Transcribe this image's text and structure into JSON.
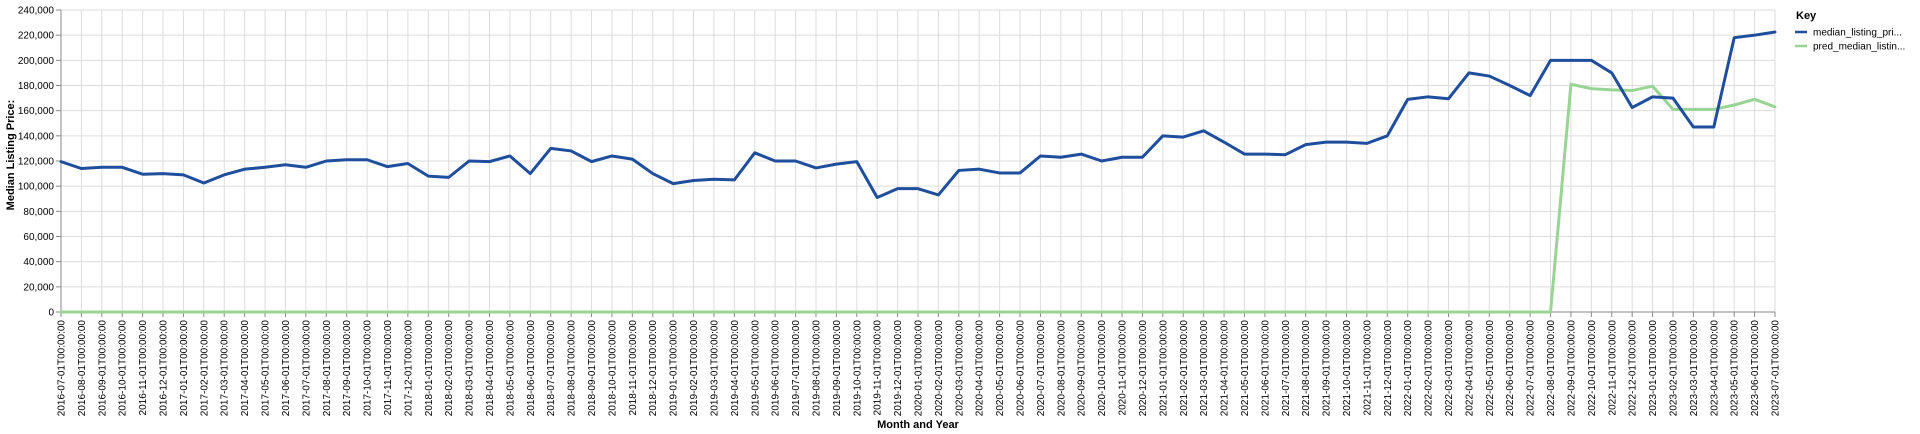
{
  "chart_data": {
    "type": "line",
    "xlabel": "Month and Year",
    "ylabel": "Median Listing Price:",
    "ylim": [
      0,
      240000
    ],
    "y_ticks": [
      0,
      20000,
      40000,
      60000,
      80000,
      100000,
      120000,
      140000,
      160000,
      180000,
      200000,
      220000,
      240000
    ],
    "y_tick_labels": [
      "0",
      "20,000",
      "40,000",
      "60,000",
      "80,000",
      "100,000",
      "120,000",
      "140,000",
      "160,000",
      "180,000",
      "200,000",
      "220,000",
      "240,000"
    ],
    "grid": true,
    "legend_title": "Key",
    "legend_position": "top-right",
    "x": [
      "2016-07-01T00:00:00",
      "2016-08-01T00:00:00",
      "2016-09-01T00:00:00",
      "2016-10-01T00:00:00",
      "2016-11-01T00:00:00",
      "2016-12-01T00:00:00",
      "2017-01-01T00:00:00",
      "2017-02-01T00:00:00",
      "2017-03-01T00:00:00",
      "2017-04-01T00:00:00",
      "2017-05-01T00:00:00",
      "2017-06-01T00:00:00",
      "2017-07-01T00:00:00",
      "2017-08-01T00:00:00",
      "2017-09-01T00:00:00",
      "2017-10-01T00:00:00",
      "2017-11-01T00:00:00",
      "2017-12-01T00:00:00",
      "2018-01-01T00:00:00",
      "2018-02-01T00:00:00",
      "2018-03-01T00:00:00",
      "2018-04-01T00:00:00",
      "2018-05-01T00:00:00",
      "2018-06-01T00:00:00",
      "2018-07-01T00:00:00",
      "2018-08-01T00:00:00",
      "2018-09-01T00:00:00",
      "2018-10-01T00:00:00",
      "2018-11-01T00:00:00",
      "2018-12-01T00:00:00",
      "2019-01-01T00:00:00",
      "2019-02-01T00:00:00",
      "2019-03-01T00:00:00",
      "2019-04-01T00:00:00",
      "2019-05-01T00:00:00",
      "2019-06-01T00:00:00",
      "2019-07-01T00:00:00",
      "2019-08-01T00:00:00",
      "2019-09-01T00:00:00",
      "2019-10-01T00:00:00",
      "2019-11-01T00:00:00",
      "2019-12-01T00:00:00",
      "2020-01-01T00:00:00",
      "2020-02-01T00:00:00",
      "2020-03-01T00:00:00",
      "2020-04-01T00:00:00",
      "2020-05-01T00:00:00",
      "2020-06-01T00:00:00",
      "2020-07-01T00:00:00",
      "2020-08-01T00:00:00",
      "2020-09-01T00:00:00",
      "2020-10-01T00:00:00",
      "2020-11-01T00:00:00",
      "2020-12-01T00:00:00",
      "2021-01-01T00:00:00",
      "2021-02-01T00:00:00",
      "2021-03-01T00:00:00",
      "2021-04-01T00:00:00",
      "2021-05-01T00:00:00",
      "2021-06-01T00:00:00",
      "2021-07-01T00:00:00",
      "2021-08-01T00:00:00",
      "2021-09-01T00:00:00",
      "2021-10-01T00:00:00",
      "2021-11-01T00:00:00",
      "2021-12-01T00:00:00",
      "2022-01-01T00:00:00",
      "2022-02-01T00:00:00",
      "2022-03-01T00:00:00",
      "2022-04-01T00:00:00",
      "2022-05-01T00:00:00",
      "2022-06-01T00:00:00",
      "2022-07-01T00:00:00",
      "2022-08-01T00:00:00",
      "2022-09-01T00:00:00",
      "2022-10-01T00:00:00",
      "2022-11-01T00:00:00",
      "2022-12-01T00:00:00",
      "2023-01-01T00:00:00",
      "2023-02-01T00:00:00",
      "2023-03-01T00:00:00",
      "2023-04-01T00:00:00",
      "2023-05-01T00:00:00",
      "2023-06-01T00:00:00",
      "2023-07-01T00:00:00"
    ],
    "series": [
      {
        "name": "median_listing_pri...",
        "color": "#1f4e9c",
        "values": [
          119500,
          114000,
          115000,
          115000,
          109500,
          110000,
          109000,
          102500,
          109000,
          113500,
          115000,
          117000,
          115000,
          120000,
          121000,
          121000,
          115500,
          118000,
          108000,
          107000,
          120000,
          119500,
          124000,
          110000,
          130000,
          128000,
          119500,
          124000,
          121500,
          110000,
          102000,
          104500,
          105500,
          105000,
          126500,
          120000,
          120000,
          114500,
          117500,
          119500,
          91000,
          98000,
          98000,
          93000,
          112500,
          113500,
          110500,
          110500,
          124000,
          123000,
          125500,
          120000,
          123000,
          123000,
          140000,
          139000,
          144000,
          135000,
          125500,
          125500,
          125000,
          133000,
          135000,
          135000,
          134000,
          140000,
          169000,
          171000,
          169500,
          190000,
          187500,
          180000,
          172000,
          200000,
          200000,
          200000,
          190000,
          162500,
          171000,
          170000,
          147000,
          147000,
          218000,
          220000,
          222500
        ]
      },
      {
        "name": "pred_median_listin...",
        "color": "#98d594",
        "values": [
          0,
          0,
          0,
          0,
          0,
          0,
          0,
          0,
          0,
          0,
          0,
          0,
          0,
          0,
          0,
          0,
          0,
          0,
          0,
          0,
          0,
          0,
          0,
          0,
          0,
          0,
          0,
          0,
          0,
          0,
          0,
          0,
          0,
          0,
          0,
          0,
          0,
          0,
          0,
          0,
          0,
          0,
          0,
          0,
          0,
          0,
          0,
          0,
          0,
          0,
          0,
          0,
          0,
          0,
          0,
          0,
          0,
          0,
          0,
          0,
          0,
          0,
          0,
          0,
          0,
          0,
          0,
          0,
          0,
          0,
          0,
          0,
          0,
          0,
          181000,
          177500,
          176500,
          176000,
          179500,
          161000,
          161000,
          161000,
          164500,
          169000,
          163000
        ]
      }
    ]
  }
}
